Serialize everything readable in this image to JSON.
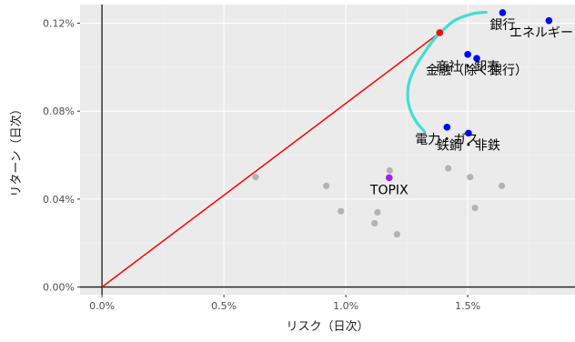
{
  "chart_data": {
    "type": "scatter",
    "title": "",
    "xlabel": "リスク（日次）",
    "ylabel": "リターン（日次）",
    "xlim": [
      -0.0009,
      0.0194
    ],
    "ylim": [
      -3.5e-05,
      0.001285
    ],
    "x_ticks": [
      0.0,
      0.005,
      0.01,
      0.015
    ],
    "x_tick_labels": [
      "0.0%",
      "0.5%",
      "1.0%",
      "1.5%"
    ],
    "y_ticks": [
      0.0,
      0.0004,
      0.0008,
      0.0012
    ],
    "y_tick_labels": [
      "0.00%",
      "0.04%",
      "0.08%",
      "0.12%"
    ],
    "grid": true,
    "colors": {
      "panel": "#ebebeb",
      "grid_major": "#ffffff",
      "grid_minor": "#f4f4f4",
      "axis_lines": "#1a1a1a",
      "frontier": "#40e0d0",
      "capital_market_line": "#ff0000",
      "tangency": "#ff0000",
      "labeled": "#0000ff",
      "benchmark": "#a020f0",
      "other": "#b3b3b3"
    },
    "capital_market_line": {
      "from": {
        "x": 0.0,
        "y": 0.0
      },
      "to": {
        "x": 0.01385,
        "y": 0.001157
      }
    },
    "tangency_point": {
      "x": 0.01385,
      "y": 0.001157
    },
    "frontier": [
      {
        "x": 0.01323,
        "y": 0.000707
      },
      {
        "x": 0.01292,
        "y": 0.000747
      },
      {
        "x": 0.0127,
        "y": 0.00079
      },
      {
        "x": 0.01257,
        "y": 0.000835
      },
      {
        "x": 0.01254,
        "y": 0.00088
      },
      {
        "x": 0.01258,
        "y": 0.000925
      },
      {
        "x": 0.01272,
        "y": 0.00097
      },
      {
        "x": 0.01295,
        "y": 0.00102
      },
      {
        "x": 0.01325,
        "y": 0.00107
      },
      {
        "x": 0.0136,
        "y": 0.001125
      },
      {
        "x": 0.014,
        "y": 0.00117
      },
      {
        "x": 0.0145,
        "y": 0.001215
      },
      {
        "x": 0.0152,
        "y": 0.001243
      },
      {
        "x": 0.01575,
        "y": 0.00125
      }
    ],
    "labeled_points": [
      {
        "label": "銀行",
        "x": 0.01643,
        "y": 0.001248
      },
      {
        "label": "エネルギー",
        "x": 0.01833,
        "y": 0.001212
      },
      {
        "label": "商社・卸売",
        "x": 0.015,
        "y": 0.001058
      },
      {
        "label": "金融（除く銀行）",
        "x": 0.01537,
        "y": 0.00104
      },
      {
        "label": "電力・ガス",
        "x": 0.01415,
        "y": 0.000727
      },
      {
        "label": "鉄鋼・非鉄",
        "x": 0.01503,
        "y": 0.0007
      }
    ],
    "benchmark_point": {
      "label": "TOPIX",
      "x": 0.01178,
      "y": 0.000497
    },
    "other_points": [
      {
        "x": 0.0063,
        "y": 0.0005
      },
      {
        "x": 0.0092,
        "y": 0.00046
      },
      {
        "x": 0.0098,
        "y": 0.000345
      },
      {
        "x": 0.01118,
        "y": 0.00029
      },
      {
        "x": 0.0113,
        "y": 0.00034
      },
      {
        "x": 0.0118,
        "y": 0.00053
      },
      {
        "x": 0.0121,
        "y": 0.00024
      },
      {
        "x": 0.0142,
        "y": 0.00054
      },
      {
        "x": 0.0151,
        "y": 0.0005
      },
      {
        "x": 0.0153,
        "y": 0.00036
      },
      {
        "x": 0.0164,
        "y": 0.00046
      }
    ]
  }
}
